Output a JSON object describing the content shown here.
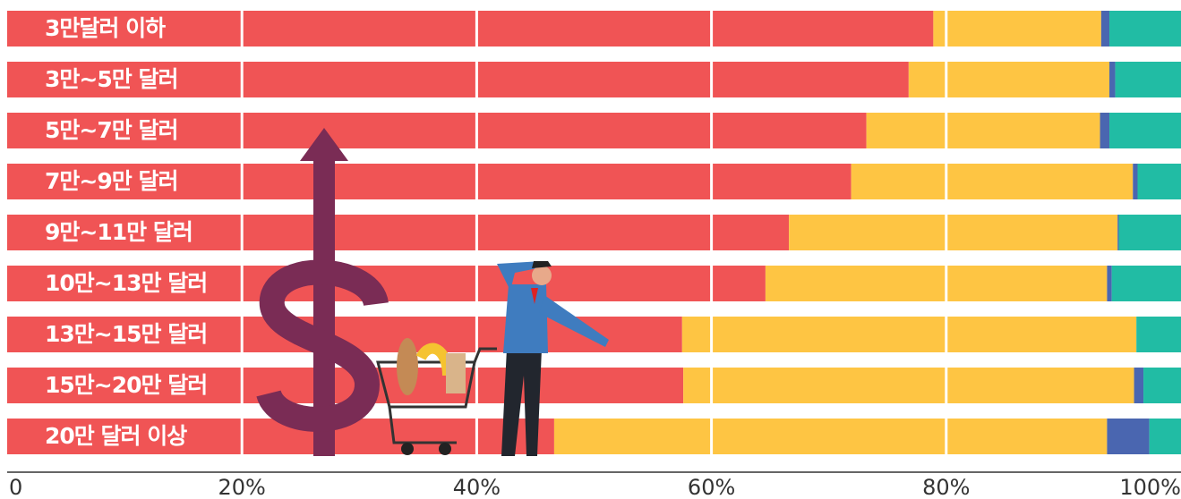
{
  "chart_data": {
    "type": "stacked-bar-horizontal",
    "categories": [
      "3만달러 이하",
      "3만~5만 달러",
      "5만~7만 달러",
      "7만~9만 달러",
      "9만~11만 달러",
      "10만~13만 달러",
      "13만~15만 달러",
      "15만~20만 달러",
      "20만 달러 이상"
    ],
    "series": [
      {
        "color": "#f05455",
        "values": [
          78.9,
          76.8,
          73.2,
          71.9,
          66.6,
          64.6,
          57.5,
          57.6,
          46.6
        ]
      },
      {
        "color": "#fec543",
        "values": [
          14.3,
          17.1,
          19.9,
          24.0,
          28.0,
          29.1,
          38.7,
          38.4,
          47.1
        ]
      },
      {
        "color": "#4a66b0",
        "values": [
          0.7,
          0.5,
          0.8,
          0.4,
          0.1,
          0.4,
          0,
          0.8,
          3.6
        ]
      },
      {
        "color": "#21bca4",
        "values": [
          6.1,
          5.6,
          6.1,
          3.7,
          5.3,
          5.9,
          3.8,
          3.2,
          2.7
        ]
      }
    ],
    "xlim": [
      0,
      100
    ],
    "xticks": [
      0,
      {
        "value": 20,
        "label": "20%"
      },
      {
        "value": 40,
        "label": "40%"
      },
      {
        "value": 60,
        "label": "60%"
      },
      {
        "value": 80,
        "label": "80%"
      },
      {
        "value": 100,
        "label": "100%"
      }
    ],
    "grid": true
  }
}
